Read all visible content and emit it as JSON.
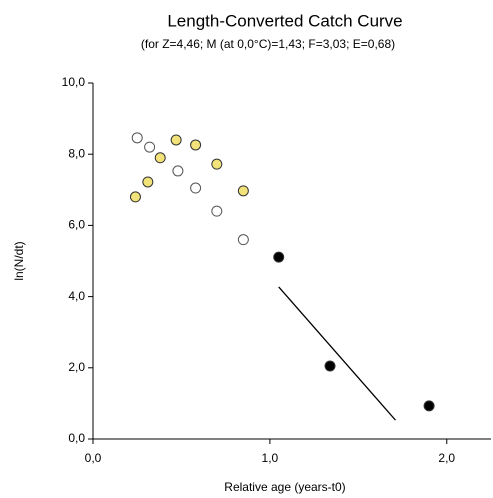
{
  "chart_data": {
    "type": "scatter",
    "title": "Length-Converted Catch Curve",
    "subtitle": "(for Z=4,46; M (at 0,0°C)=1,43; F=3,03; E=0,68)",
    "x_label": "Relative age (years-t0)",
    "y_label": "ln(N/dt)",
    "xlim": [
      0,
      2.25
    ],
    "ylim": [
      0,
      10
    ],
    "xticks": [
      {
        "value": 0,
        "label": "0,0"
      },
      {
        "value": 1,
        "label": "1,0"
      },
      {
        "value": 2,
        "label": "2,0"
      }
    ],
    "yticks": [
      {
        "value": 0,
        "label": "0,0"
      },
      {
        "value": 2,
        "label": "2,0"
      },
      {
        "value": 4,
        "label": "4,0"
      },
      {
        "value": 6,
        "label": "6,0"
      },
      {
        "value": 8,
        "label": "8,0"
      },
      {
        "value": 10,
        "label": "10,0"
      }
    ],
    "series": [
      {
        "style": "open",
        "color": "#ffffff",
        "x": [
          0.25,
          0.32,
          0.48,
          0.58,
          0.7,
          0.85
        ],
        "values": [
          8.46,
          8.2,
          7.53,
          7.05,
          6.4,
          5.6
        ]
      },
      {
        "style": "filled",
        "color": "#f2e27a",
        "x": [
          0.24,
          0.31,
          0.38,
          0.47,
          0.58,
          0.7,
          0.85
        ],
        "values": [
          6.8,
          7.22,
          7.9,
          8.4,
          8.26,
          7.72,
          6.97
        ]
      },
      {
        "style": "filled",
        "color": "#000000",
        "x": [
          1.05,
          1.34,
          1.9
        ],
        "values": [
          5.11,
          2.05,
          0.93
        ]
      },
      {
        "style": "line",
        "color": "#000000",
        "x": [
          1.05,
          1.71
        ],
        "values": [
          4.27,
          0.53
        ]
      }
    ]
  }
}
